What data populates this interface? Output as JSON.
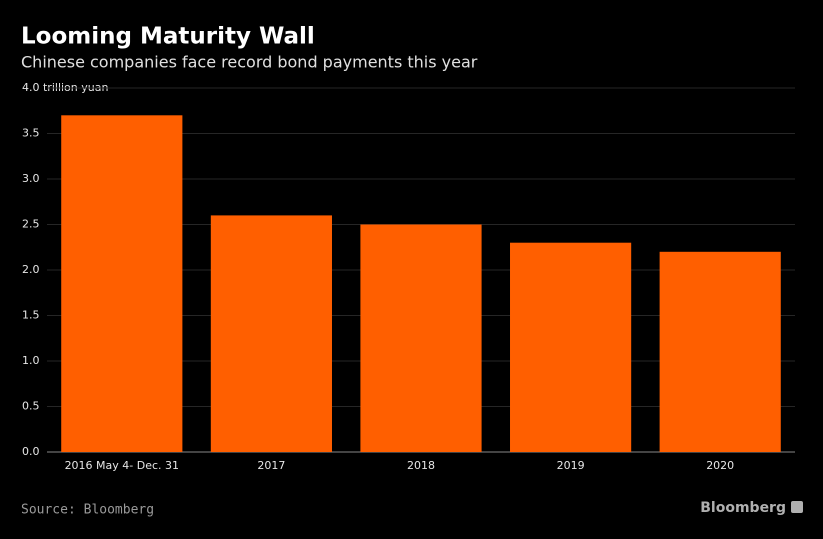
{
  "chart_data": {
    "type": "bar",
    "title": "Looming Maturity Wall",
    "subtitle": "Chinese companies face record bond payments this year",
    "categories": [
      "2016 May 4- Dec. 31",
      "2017",
      "2018",
      "2019",
      "2020"
    ],
    "values": [
      3.7,
      2.6,
      2.5,
      2.3,
      2.2
    ],
    "color": "#ff5f00",
    "ylim": [
      0,
      4
    ],
    "yticks": [
      {
        "value": 0,
        "label": "0.0"
      },
      {
        "value": 0.5,
        "label": "0.5"
      },
      {
        "value": 1,
        "label": "1.0"
      },
      {
        "value": 1.5,
        "label": "1.5"
      },
      {
        "value": 2,
        "label": "2.0"
      },
      {
        "value": 2.5,
        "label": "2.5"
      },
      {
        "value": 3,
        "label": "3.0"
      },
      {
        "value": 3.5,
        "label": "3.5"
      },
      {
        "value": 4,
        "label": "4.0 trillion yuan"
      }
    ],
    "grid": true,
    "source": "Source: Bloomberg",
    "brand": "Bloomberg"
  }
}
